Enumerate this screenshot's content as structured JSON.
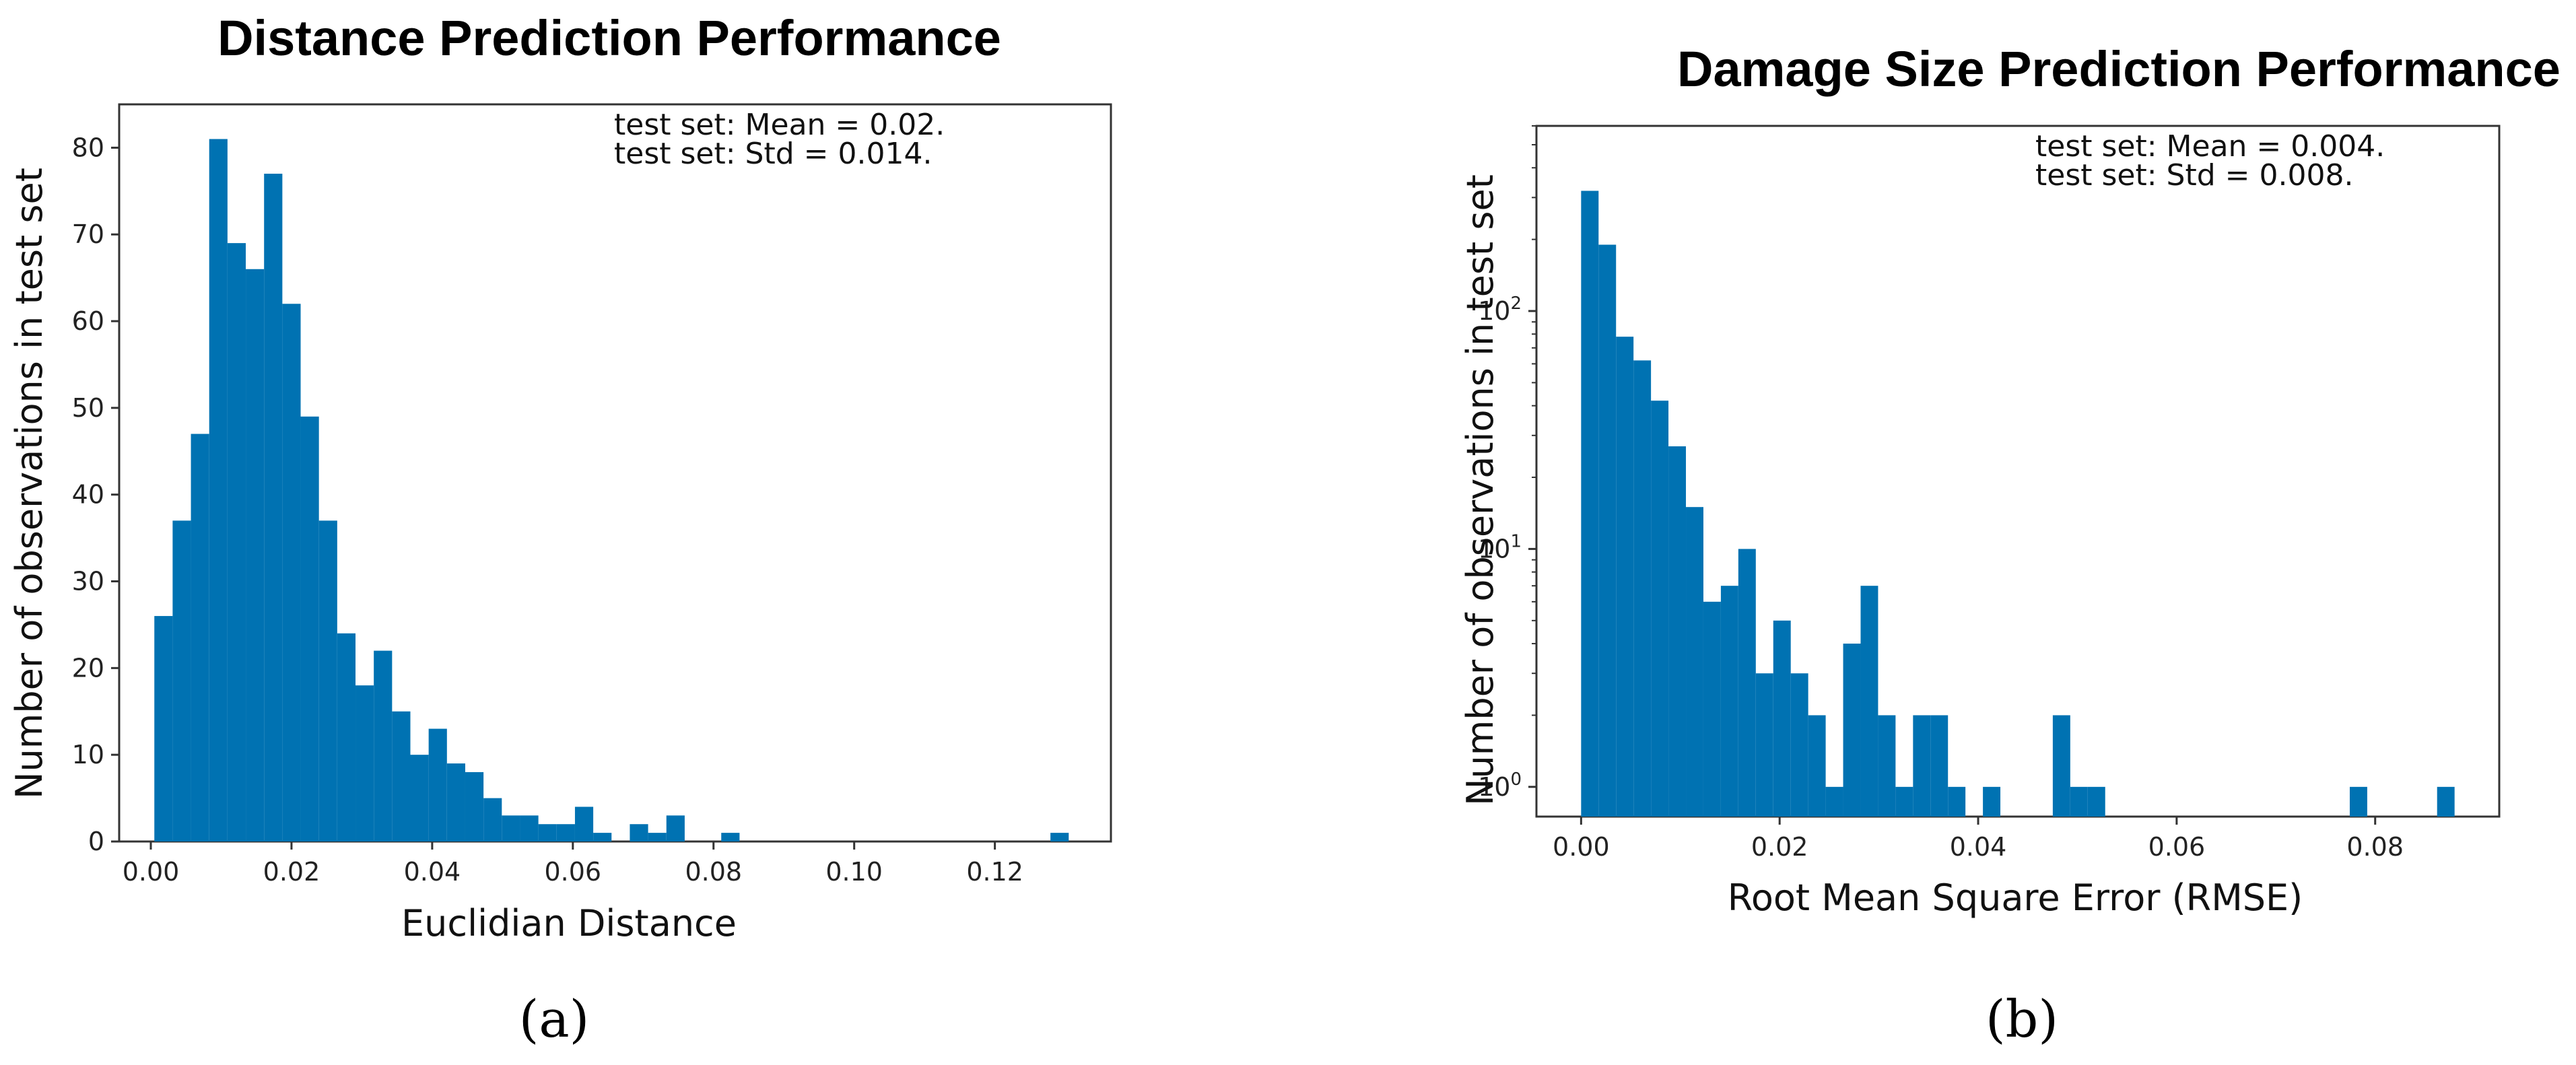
{
  "figure": {
    "panels": [
      {
        "label": "(a)",
        "chart_data": {
          "type": "bar",
          "title": "Distance Prediction Performance",
          "xlabel": "Euclidian Distance",
          "ylabel": "Number of observations in test set",
          "annotations": [
            "test set: Mean = 0.02.",
            "test set: Std = 0.014."
          ],
          "yscale": "linear",
          "xlim": [
            -0.0045,
            0.1365
          ],
          "ylim": [
            0,
            85
          ],
          "xticks": [
            0.0,
            0.02,
            0.04,
            0.06,
            0.08,
            0.1,
            0.12
          ],
          "xtick_labels": [
            "0.00",
            "0.02",
            "0.04",
            "0.06",
            "0.08",
            "0.10",
            "0.12"
          ],
          "yticks": [
            0,
            10,
            20,
            30,
            40,
            50,
            60,
            70,
            80
          ],
          "ytick_labels": [
            "0",
            "10",
            "20",
            "30",
            "40",
            "50",
            "60",
            "70",
            "80"
          ],
          "bin_start": 0.0005,
          "bin_width": 0.0026,
          "values": [
            26,
            37,
            47,
            81,
            69,
            66,
            77,
            62,
            49,
            37,
            24,
            18,
            22,
            15,
            10,
            13,
            9,
            8,
            5,
            3,
            3,
            2,
            2,
            4,
            1,
            0,
            2,
            1,
            3,
            0,
            0,
            1,
            0,
            0,
            0,
            0,
            0,
            0,
            0,
            0,
            0,
            0,
            0,
            0,
            0,
            0,
            0,
            0,
            0,
            1
          ],
          "bar_color": "#0072B2",
          "grid": false
        }
      },
      {
        "label": "(b)",
        "chart_data": {
          "type": "bar",
          "title": "Damage Size Prediction Performance",
          "xlabel": "Root Mean Square Error (RMSE)",
          "ylabel": "Number of observations in test set",
          "annotations": [
            "test set: Mean = 0.004.",
            "test set: Std = 0.008."
          ],
          "yscale": "log",
          "xlim": [
            -0.0045,
            0.0925
          ],
          "ylim": [
            0.75,
            600
          ],
          "xticks": [
            0.0,
            0.02,
            0.04,
            0.06,
            0.08
          ],
          "xtick_labels": [
            "0.00",
            "0.02",
            "0.04",
            "0.06",
            "0.08"
          ],
          "yticks": [
            1,
            10,
            100
          ],
          "ytick_labels": [
            {
              "base": "10",
              "exp": "0"
            },
            {
              "base": "10",
              "exp": "1"
            },
            {
              "base": "10",
              "exp": "2"
            }
          ],
          "bin_start": 0.0,
          "bin_width": 0.00176,
          "values": [
            320,
            190,
            78,
            62,
            42,
            27,
            15,
            6,
            7,
            10,
            3,
            5,
            3,
            2,
            1,
            4,
            7,
            2,
            1,
            2,
            2,
            1,
            0,
            1,
            0,
            0,
            0,
            2,
            1,
            1,
            0,
            0,
            0,
            0,
            0,
            0,
            0,
            0,
            0,
            0,
            0,
            0,
            0,
            0,
            1,
            0,
            0,
            0,
            0,
            1
          ],
          "bar_color": "#0072B2",
          "grid": false
        }
      }
    ]
  }
}
